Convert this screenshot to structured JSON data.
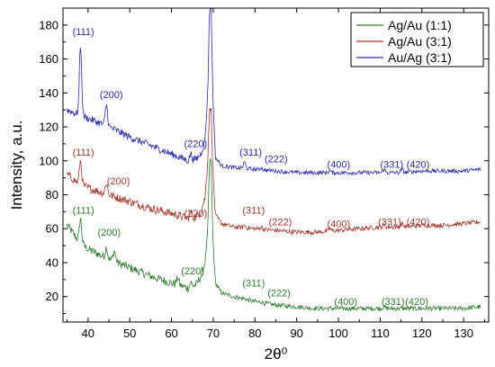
{
  "chart_data": {
    "type": "line",
    "xlabel": "2θ⁰",
    "ylabel": "Intensity, a.u.",
    "xlim": [
      34,
      136
    ],
    "ylim": [
      5,
      190
    ],
    "xticks": [
      40,
      50,
      60,
      70,
      80,
      90,
      100,
      110,
      120,
      130
    ],
    "yticks": [
      20,
      40,
      60,
      80,
      100,
      120,
      140,
      160,
      180
    ],
    "grid": false,
    "legend_position": "top-right",
    "series": [
      {
        "name": "Ag/Au (1:1)",
        "color": "#2f7a2f",
        "baseline": [
          [
            35,
            62
          ],
          [
            38,
            52
          ],
          [
            40,
            48
          ],
          [
            45,
            42
          ],
          [
            50,
            37
          ],
          [
            55,
            32
          ],
          [
            60,
            28
          ],
          [
            64,
            25
          ],
          [
            66,
            27
          ],
          [
            67,
            32
          ],
          [
            68,
            40
          ],
          [
            68.7,
            58
          ],
          [
            69.1,
            100
          ],
          [
            69.5,
            100
          ],
          [
            69.9,
            55
          ],
          [
            70.5,
            28
          ],
          [
            72,
            22
          ],
          [
            75,
            20
          ],
          [
            78,
            18
          ],
          [
            80,
            17
          ],
          [
            85,
            15
          ],
          [
            90,
            14
          ],
          [
            95,
            13
          ],
          [
            100,
            13
          ],
          [
            105,
            13
          ],
          [
            110,
            13
          ],
          [
            115,
            13
          ],
          [
            120,
            13
          ],
          [
            125,
            13
          ],
          [
            130,
            13
          ],
          [
            134,
            14
          ]
        ],
        "peaks": [
          [
            38.2,
            66
          ],
          [
            44.4,
            49
          ],
          [
            46.3,
            47
          ],
          [
            61.5,
            31
          ],
          [
            64.6,
            28
          ],
          [
            77.5,
            19
          ],
          [
            81.5,
            17
          ],
          [
            97.9,
            13
          ],
          [
            110.9,
            14
          ],
          [
            115.2,
            13
          ]
        ],
        "noise": 2.5
      },
      {
        "name": "Ag/Au (3:1)",
        "color": "#a0382d",
        "baseline": [
          [
            35,
            92
          ],
          [
            38,
            86
          ],
          [
            40,
            84
          ],
          [
            45,
            80
          ],
          [
            50,
            76
          ],
          [
            55,
            72
          ],
          [
            60,
            69
          ],
          [
            64,
            66
          ],
          [
            66,
            67
          ],
          [
            67,
            70
          ],
          [
            68,
            78
          ],
          [
            68.7,
            100
          ],
          [
            69.1,
            130
          ],
          [
            69.5,
            130
          ],
          [
            69.9,
            95
          ],
          [
            70.5,
            68
          ],
          [
            72,
            63
          ],
          [
            75,
            61
          ],
          [
            80,
            60
          ],
          [
            85,
            59
          ],
          [
            90,
            58
          ],
          [
            95,
            58
          ],
          [
            100,
            59
          ],
          [
            105,
            60
          ],
          [
            110,
            61
          ],
          [
            115,
            61
          ],
          [
            120,
            62
          ],
          [
            125,
            62
          ],
          [
            130,
            63
          ],
          [
            134,
            64
          ]
        ],
        "peaks": [
          [
            38.2,
            100
          ],
          [
            44.4,
            87
          ],
          [
            64.6,
            70
          ],
          [
            77.5,
            62
          ],
          [
            81.5,
            61
          ],
          [
            97.9,
            60
          ],
          [
            110.9,
            62
          ],
          [
            115.2,
            63
          ]
        ],
        "noise": 2.5
      },
      {
        "name": "Au/Ag (3:1)",
        "color": "#2a2aa8",
        "baseline": [
          [
            35,
            130
          ],
          [
            38,
            127
          ],
          [
            40,
            125
          ],
          [
            45,
            120
          ],
          [
            50,
            114
          ],
          [
            55,
            109
          ],
          [
            60,
            104
          ],
          [
            64,
            100
          ],
          [
            66,
            101
          ],
          [
            67,
            104
          ],
          [
            68,
            112
          ],
          [
            68.7,
            140
          ],
          [
            69.1,
            190
          ],
          [
            69.5,
            190
          ],
          [
            69.9,
            140
          ],
          [
            70.5,
            102
          ],
          [
            72,
            97
          ],
          [
            75,
            96
          ],
          [
            80,
            95
          ],
          [
            85,
            94
          ],
          [
            90,
            93
          ],
          [
            95,
            93
          ],
          [
            100,
            93
          ],
          [
            105,
            93
          ],
          [
            110,
            93
          ],
          [
            115,
            93
          ],
          [
            120,
            94
          ],
          [
            125,
            94
          ],
          [
            130,
            94
          ],
          [
            134,
            95
          ]
        ],
        "peaks": [
          [
            38.2,
            168
          ],
          [
            44.4,
            133
          ],
          [
            64.6,
            104
          ],
          [
            77.5,
            99
          ],
          [
            81.5,
            96
          ],
          [
            97.9,
            94
          ],
          [
            110.9,
            95
          ],
          [
            115.2,
            95
          ]
        ],
        "noise": 2.2
      }
    ],
    "annotations": [
      {
        "text": "(111)",
        "x": 36.3,
        "y": 174,
        "series": 2
      },
      {
        "text": "(200)",
        "x": 42.8,
        "y": 137,
        "series": 2
      },
      {
        "text": "(220)",
        "x": 63.0,
        "y": 108,
        "series": 2
      },
      {
        "text": "(311)",
        "x": 76.3,
        "y": 103,
        "series": 2
      },
      {
        "text": "(222)",
        "x": 82.3,
        "y": 99,
        "series": 2
      },
      {
        "text": "(400)",
        "x": 97.3,
        "y": 96,
        "series": 2
      },
      {
        "text": "(331)",
        "x": 110.0,
        "y": 96,
        "series": 2
      },
      {
        "text": "(420)",
        "x": 116.3,
        "y": 96,
        "series": 2
      },
      {
        "text": "(111)",
        "x": 36.3,
        "y": 103,
        "series": 1
      },
      {
        "text": "(200)",
        "x": 44.5,
        "y": 86,
        "series": 1
      },
      {
        "text": "(220)",
        "x": 63.0,
        "y": 67,
        "series": 1
      },
      {
        "text": "(311)",
        "x": 77.0,
        "y": 69,
        "series": 1
      },
      {
        "text": "(222)",
        "x": 83.3,
        "y": 62,
        "series": 1
      },
      {
        "text": "(400)",
        "x": 97.3,
        "y": 61,
        "series": 1
      },
      {
        "text": "(331)",
        "x": 109.5,
        "y": 62,
        "series": 1
      },
      {
        "text": "(420)",
        "x": 116.3,
        "y": 62,
        "series": 1
      },
      {
        "text": "(111)",
        "x": 36.3,
        "y": 69,
        "series": 0
      },
      {
        "text": "(200)",
        "x": 42.3,
        "y": 56,
        "series": 0
      },
      {
        "text": "(220)",
        "x": 62.3,
        "y": 33,
        "series": 0
      },
      {
        "text": "(311)",
        "x": 77.0,
        "y": 26,
        "series": 0
      },
      {
        "text": "(222)",
        "x": 83.0,
        "y": 20,
        "series": 0
      },
      {
        "text": "(400)",
        "x": 99.0,
        "y": 15,
        "series": 0
      },
      {
        "text": "(331)",
        "x": 110.3,
        "y": 15,
        "series": 0
      },
      {
        "text": "(420)",
        "x": 116.0,
        "y": 15,
        "series": 0
      }
    ]
  }
}
